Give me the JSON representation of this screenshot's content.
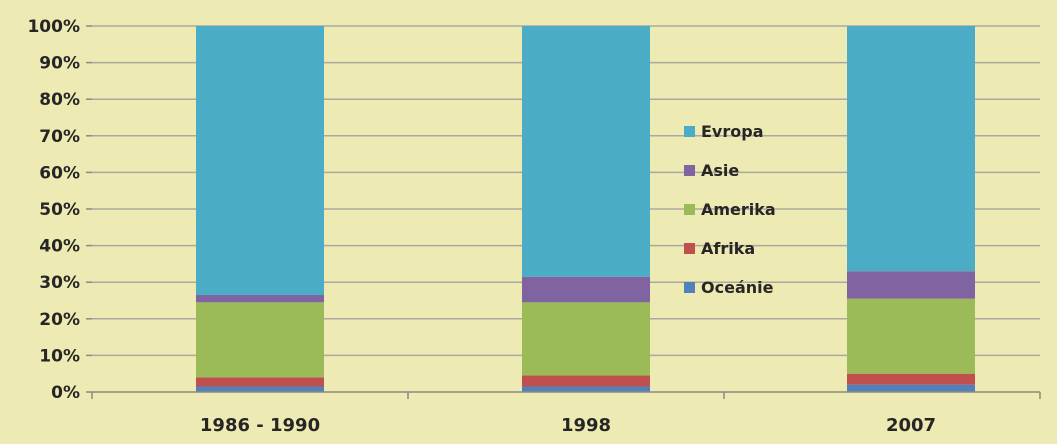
{
  "chart_data": {
    "type": "bar",
    "stacked": true,
    "normalized": true,
    "categories": [
      "1986 - 1990",
      "1998",
      "2007"
    ],
    "series": [
      {
        "name": "Oceánie",
        "values": [
          1.5,
          1.5,
          2.0
        ],
        "color": "#4f81bd"
      },
      {
        "name": "Afrika",
        "values": [
          2.5,
          3.0,
          3.0
        ],
        "color": "#c0504d"
      },
      {
        "name": "Amerika",
        "values": [
          20.5,
          20.0,
          20.5
        ],
        "color": "#9bbb59"
      },
      {
        "name": "Asie",
        "values": [
          2.0,
          7.0,
          7.5
        ],
        "color": "#8064a2"
      },
      {
        "name": "Evropa",
        "values": [
          73.5,
          68.5,
          67.0
        ],
        "color": "#4bacc6"
      }
    ],
    "y_ticks": [
      "0%",
      "10%",
      "20%",
      "30%",
      "40%",
      "50%",
      "60%",
      "70%",
      "80%",
      "90%",
      "100%"
    ],
    "ylim": [
      0,
      100
    ],
    "grid": true,
    "legend_position": "center-right",
    "legend_order": [
      "Evropa",
      "Asie",
      "Amerika",
      "Afrika",
      "Oceánie"
    ],
    "background_color": "#eeeab4"
  }
}
